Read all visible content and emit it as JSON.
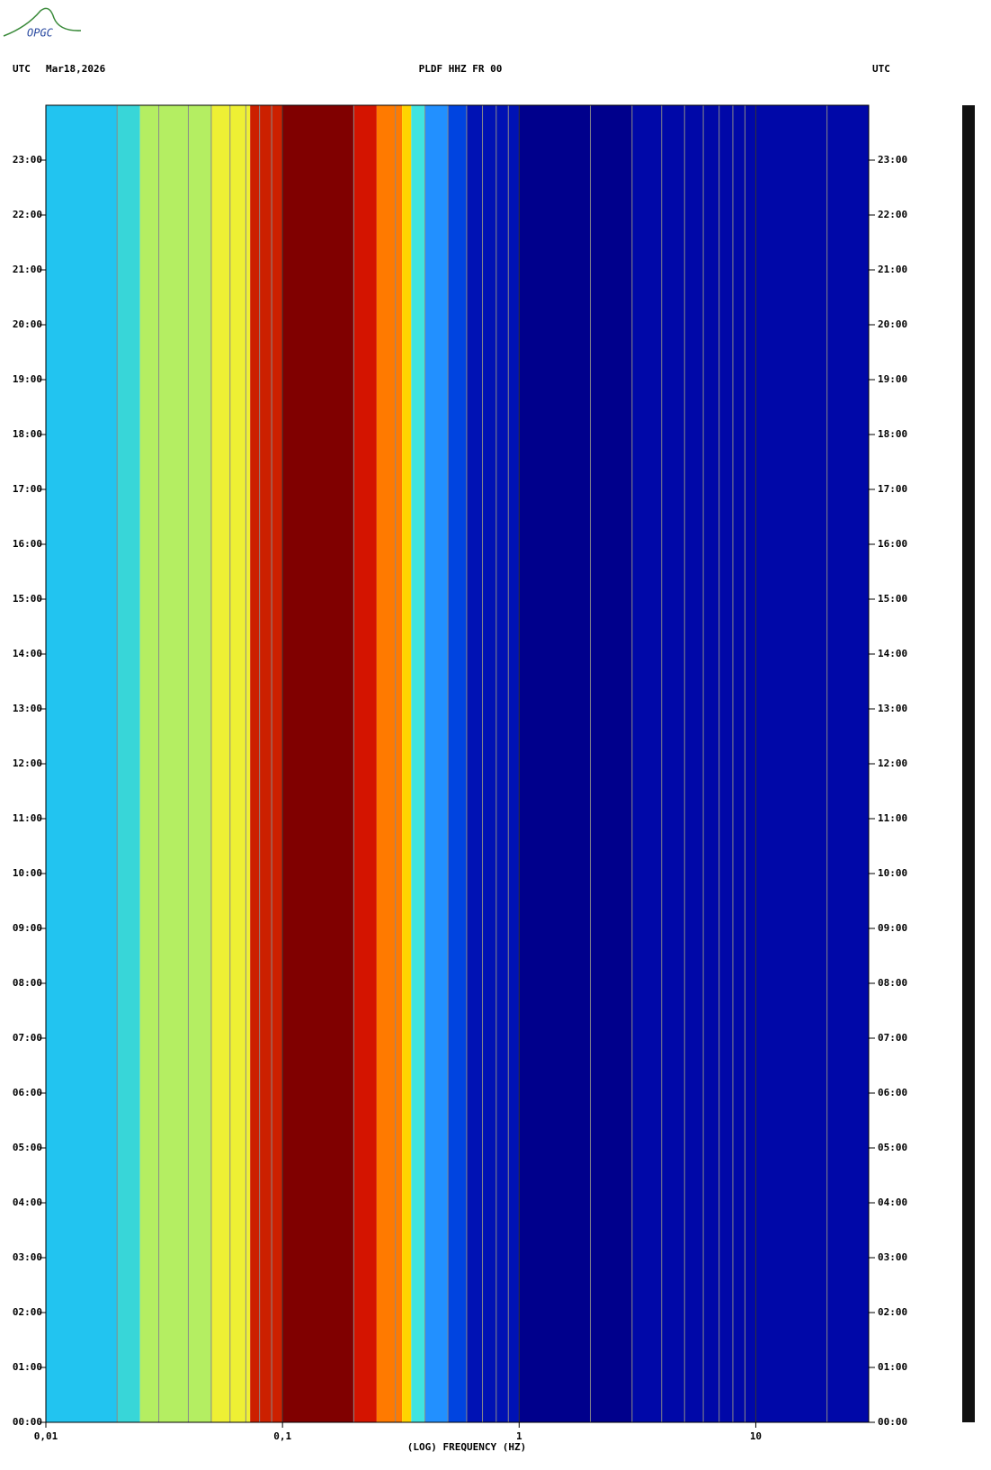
{
  "logo": "OPGC",
  "chart_data": {
    "type": "spectrogram",
    "header_left": "UTC",
    "date": "Mar18,2026",
    "title": "PLDF HHZ FR 00",
    "header_right": "UTC",
    "xlabel": "(LOG) FREQUENCY (HZ)",
    "xscale": "log",
    "xlim": [
      0.01,
      30
    ],
    "xticks": [
      {
        "value": 0.01,
        "label": "0,01"
      },
      {
        "value": 0.1,
        "label": "0,1"
      },
      1,
      10
    ],
    "xgrid": [
      0.02,
      0.03,
      0.04,
      0.05,
      0.06,
      0.07,
      0.08,
      0.09,
      0.2,
      0.3,
      0.4,
      0.5,
      0.6,
      0.7,
      0.8,
      0.9,
      2,
      3,
      4,
      5,
      6,
      7,
      8,
      9,
      20
    ],
    "grid_color": "#8a8a8a",
    "ylim": [
      0,
      24
    ],
    "yticks": [
      {
        "value": 0,
        "label": "00:00"
      },
      {
        "value": 1,
        "label": "01:00"
      },
      {
        "value": 2,
        "label": "02:00"
      },
      {
        "value": 3,
        "label": "03:00"
      },
      {
        "value": 4,
        "label": "04:00"
      },
      {
        "value": 5,
        "label": "05:00"
      },
      {
        "value": 6,
        "label": "06:00"
      },
      {
        "value": 7,
        "label": "07:00"
      },
      {
        "value": 8,
        "label": "08:00"
      },
      {
        "value": 9,
        "label": "09:00"
      },
      {
        "value": 10,
        "label": "10:00"
      },
      {
        "value": 11,
        "label": "11:00"
      },
      {
        "value": 12,
        "label": "12:00"
      },
      {
        "value": 13,
        "label": "13:00"
      },
      {
        "value": 14,
        "label": "14:00"
      },
      {
        "value": 15,
        "label": "15:00"
      },
      {
        "value": 16,
        "label": "16:00"
      },
      {
        "value": 17,
        "label": "17:00"
      },
      {
        "value": 18,
        "label": "18:00"
      },
      {
        "value": 19,
        "label": "19:00"
      },
      {
        "value": 20,
        "label": "20:00"
      },
      {
        "value": 21,
        "label": "21:00"
      },
      {
        "value": 22,
        "label": "22:00"
      },
      {
        "value": 23,
        "label": "23:00"
      }
    ],
    "band_edges": [
      0.01,
      0.02,
      0.025,
      0.05,
      0.073,
      0.1,
      0.2,
      0.25,
      0.32,
      0.35,
      0.4,
      0.5,
      0.6,
      1,
      3,
      30
    ],
    "band_colors": [
      "#22c4f0",
      "#38d6d8",
      "#b4ee62",
      "#eef034",
      "#cc2000",
      "#800000",
      "#d41400",
      "#ff7a00",
      "#ffd400",
      "#40e4e0",
      "#2290ff",
      "#0044e0",
      "#0012b4",
      "#00008c",
      "#0008a8"
    ]
  }
}
